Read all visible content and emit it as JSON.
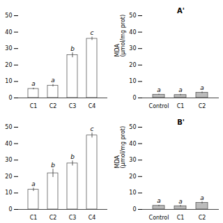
{
  "chart_data": [
    {
      "type": "bar",
      "categories": [
        "C1",
        "C2",
        "C3",
        "C4"
      ],
      "values": [
        5.5,
        7.5,
        26.0,
        36.0
      ],
      "errors": [
        0.5,
        0.7,
        1.5,
        1.0
      ],
      "annotations": [
        "a",
        "a",
        "b",
        "c"
      ],
      "ylim": [
        0,
        50
      ],
      "yticks": [
        0,
        10,
        20,
        30,
        40,
        50
      ],
      "color": "white"
    },
    {
      "type": "bar",
      "title": "A'",
      "categories": [
        "Control",
        "C1",
        "C2"
      ],
      "values": [
        2.0,
        1.8,
        3.2
      ],
      "errors": [
        0.3,
        0.4,
        0.5
      ],
      "annotations": [
        "a",
        "a",
        "a"
      ],
      "ylim": [
        0,
        50
      ],
      "yticks": [
        0,
        10,
        20,
        30,
        40,
        50
      ],
      "color": "#bbbbbb",
      "ylabel": "MDA\n(μmol/mg prot)"
    },
    {
      "type": "bar",
      "categories": [
        "C1",
        "C2",
        "C3",
        "C4"
      ],
      "values": [
        12.0,
        22.0,
        28.0,
        45.0
      ],
      "errors": [
        1.0,
        2.5,
        1.5,
        1.5
      ],
      "annotations": [
        "a",
        "b",
        "b",
        "c"
      ],
      "ylim": [
        0,
        50
      ],
      "yticks": [
        0,
        10,
        20,
        30,
        40,
        50
      ],
      "color": "white"
    },
    {
      "type": "bar",
      "title": "B'",
      "categories": [
        "Control",
        "C1",
        "C2"
      ],
      "values": [
        2.2,
        2.0,
        4.0
      ],
      "errors": [
        0.4,
        0.5,
        0.6
      ],
      "annotations": [
        "a",
        "a",
        "a"
      ],
      "ylim": [
        0,
        50
      ],
      "yticks": [
        0,
        10,
        20,
        30,
        40,
        50
      ],
      "color": "#bbbbbb",
      "ylabel": "MDA\n(μmol/mg prot)"
    }
  ]
}
